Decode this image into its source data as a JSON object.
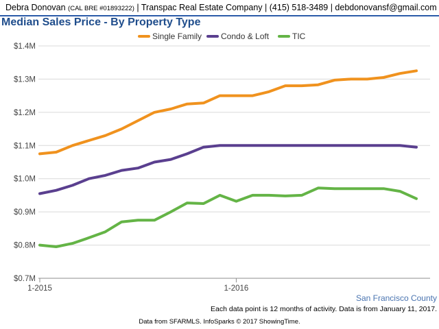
{
  "header": {
    "agent_name": "Debra Donovan",
    "license": "(CAL BRE #01893222)",
    "rest": "| Transpac Real Estate Company | (415) 518-3489 | debdonovansf@gmail.com"
  },
  "footer": {
    "county": "San Francisco County",
    "note": "Each data point is 12 months of activity. Data is from January 11, 2017.",
    "source": "Data from SFARMLS. InfoSparks © 2017 ShowingTime."
  },
  "colors": {
    "single_family": "#f0921e",
    "condo_loft": "#5a3f8f",
    "tic": "#64b446",
    "grid": "#d9d9d9",
    "axis": "#8c8c8c"
  },
  "chart_data": {
    "type": "line",
    "title": "Median Sales Price - By Property Type",
    "legend_position": "top-center",
    "grid": true,
    "x_tick_labels": [
      "1-2015",
      "1-2016"
    ],
    "y_ticks": [
      0.7,
      0.8,
      0.9,
      1.0,
      1.1,
      1.2,
      1.3,
      1.4
    ],
    "y_tick_labels": [
      "$0.7M",
      "$0.8M",
      "$0.9M",
      "$1.0M",
      "$1.1M",
      "$1.2M",
      "$1.3M",
      "$1.4M"
    ],
    "ylim": [
      0.7,
      1.4
    ],
    "x": [
      "2015-01",
      "2015-02",
      "2015-03",
      "2015-04",
      "2015-05",
      "2015-06",
      "2015-07",
      "2015-08",
      "2015-09",
      "2015-10",
      "2015-11",
      "2015-12",
      "2016-01",
      "2016-02",
      "2016-03",
      "2016-04",
      "2016-05",
      "2016-06",
      "2016-07",
      "2016-08",
      "2016-09",
      "2016-10",
      "2016-11",
      "2016-12"
    ],
    "series": [
      {
        "name": "Single Family",
        "color": "#f0921e",
        "values": [
          1.075,
          1.08,
          1.1,
          1.115,
          1.13,
          1.15,
          1.175,
          1.2,
          1.21,
          1.225,
          1.228,
          1.25,
          1.25,
          1.25,
          1.262,
          1.28,
          1.28,
          1.283,
          1.297,
          1.3,
          1.3,
          1.305,
          1.317,
          1.325
        ]
      },
      {
        "name": "Condo & Loft",
        "color": "#5a3f8f",
        "values": [
          0.955,
          0.965,
          0.98,
          1.0,
          1.01,
          1.025,
          1.032,
          1.05,
          1.058,
          1.075,
          1.095,
          1.1,
          1.1,
          1.1,
          1.1,
          1.1,
          1.1,
          1.1,
          1.1,
          1.1,
          1.1,
          1.1,
          1.1,
          1.095
        ]
      },
      {
        "name": "TIC",
        "color": "#64b446",
        "values": [
          0.8,
          0.795,
          0.805,
          0.822,
          0.84,
          0.87,
          0.875,
          0.875,
          0.9,
          0.927,
          0.925,
          0.95,
          0.932,
          0.95,
          0.95,
          0.948,
          0.95,
          0.972,
          0.97,
          0.97,
          0.97,
          0.97,
          0.962,
          0.94
        ]
      }
    ]
  }
}
